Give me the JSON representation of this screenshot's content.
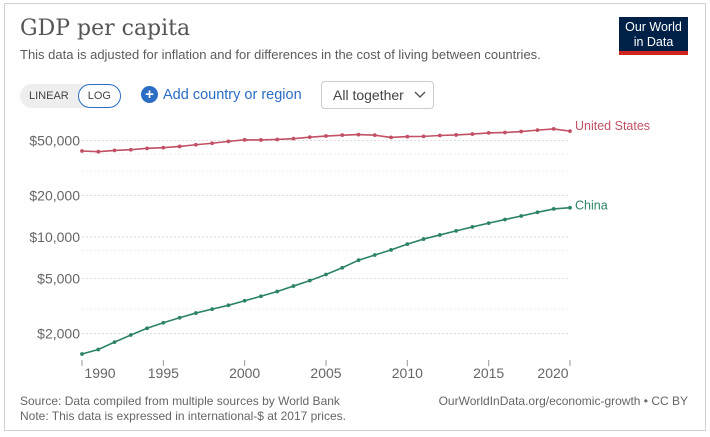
{
  "header": {
    "title": "GDP per capita",
    "subtitle": "This data is adjusted for inflation and for differences in the cost of living between countries.",
    "logo": "Our World in Data"
  },
  "controls": {
    "linear": "LINEAR",
    "log": "LOG",
    "add_country": "Add country or region",
    "facet": "All together"
  },
  "colors": {
    "us": "#c15065",
    "china": "#2c8465",
    "accent": "#2b6cc4"
  },
  "footer": {
    "source": "Source: Data compiled from multiple sources by World Bank",
    "note": "Note: This data is expressed in international-$ at 2017 prices.",
    "url": "OurWorldInData.org/economic-growth • CC BY"
  },
  "chart_data": {
    "type": "line",
    "title": "GDP per capita",
    "yscale": "log",
    "ylim": [
      1400,
      70000
    ],
    "xlim": [
      1990,
      2020
    ],
    "y_ticks": [
      {
        "v": 50000,
        "label": "$50,000"
      },
      {
        "v": 20000,
        "label": "$20,000"
      },
      {
        "v": 10000,
        "label": "$10,000"
      },
      {
        "v": 5000,
        "label": "$5,000"
      },
      {
        "v": 2000,
        "label": "$2,000"
      }
    ],
    "x_ticks": [
      1990,
      1995,
      2000,
      2005,
      2010,
      2015,
      2020
    ],
    "x": [
      1990,
      1991,
      1992,
      1993,
      1994,
      1995,
      1996,
      1997,
      1998,
      1999,
      2000,
      2001,
      2002,
      2003,
      2004,
      2005,
      2006,
      2007,
      2008,
      2009,
      2010,
      2011,
      2012,
      2013,
      2014,
      2015,
      2016,
      2017,
      2018,
      2019,
      2020
    ],
    "series": [
      {
        "name": "United States",
        "color": "#c15065",
        "values": [
          42000,
          41500,
          42400,
          42900,
          43900,
          44400,
          45300,
          46600,
          47800,
          49300,
          50600,
          50500,
          50900,
          51600,
          52900,
          53900,
          54700,
          55200,
          54700,
          52700,
          53400,
          53600,
          54400,
          54900,
          55700,
          56800,
          57200,
          58100,
          59500,
          60700,
          58500
        ]
      },
      {
        "name": "China",
        "color": "#2c8465",
        "values": [
          1420,
          1530,
          1730,
          1950,
          2180,
          2390,
          2600,
          2810,
          3000,
          3200,
          3450,
          3720,
          4030,
          4410,
          4830,
          5350,
          5990,
          6790,
          7400,
          8060,
          8880,
          9660,
          10350,
          11080,
          11830,
          12600,
          13380,
          14200,
          15100,
          15980,
          16300
        ]
      }
    ]
  }
}
